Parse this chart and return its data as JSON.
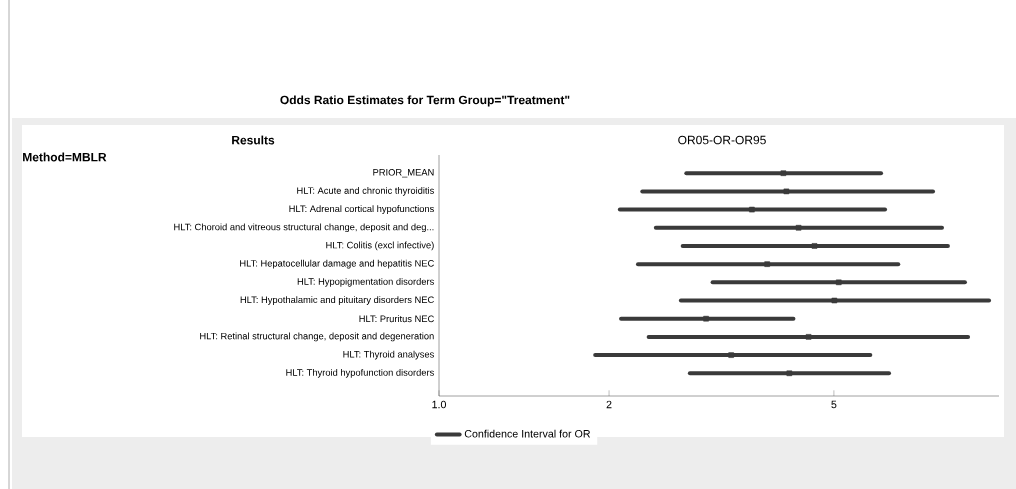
{
  "chart_data": {
    "type": "scatter",
    "orientation": "horizontal",
    "title": "Odds Ratio Estimates for Term Group=\"Treatment\"",
    "annotations": [
      "Results",
      "OR05-OR-OR95",
      "Method=MBLR"
    ],
    "categories": [
      "PRIOR_MEAN",
      "HLT: Acute and chronic thyroiditis",
      "HLT: Adrenal cortical hypofunctions",
      "HLT: Choroid and vitreous structural change, deposit and deg...",
      "HLT: Colitis (excl infective)",
      "HLT: Hepatocellular damage and hepatitis NEC",
      "HLT: Hypopigmentation disorders",
      "HLT: Hypothalamic and pituitary disorders NEC",
      "HLT: Pruritus NEC",
      "HLT: Retinal structural change, deposit and degeneration",
      "HLT: Thyroid analyses",
      "HLT: Thyroid hypofunction disorders"
    ],
    "series": [
      {
        "name": "Confidence Interval for OR",
        "color": "#3a3a3a",
        "values": [
          4.07,
          4.12,
          3.58,
          4.33,
          4.62,
          3.81,
          5.1,
          5.01,
          2.97,
          4.51,
          3.29,
          4.17
        ],
        "errors": [
          [
            2.74,
            6.06
          ],
          [
            2.29,
            7.49
          ],
          [
            2.09,
            6.16
          ],
          [
            2.42,
            7.77
          ],
          [
            2.7,
            7.96
          ],
          [
            2.25,
            6.5
          ],
          [
            3.05,
            8.53
          ],
          [
            2.68,
            9.41
          ],
          [
            2.1,
            4.24
          ],
          [
            2.35,
            8.64
          ],
          [
            1.89,
            5.8
          ],
          [
            2.78,
            6.26
          ]
        ]
      }
    ],
    "log": "x",
    "xlim": [
      1,
      9.8
    ],
    "xticks": [
      {
        "value": 1,
        "label": "1.0"
      },
      2,
      5
    ],
    "marker": "square",
    "legend": "bottom",
    "grid": false
  }
}
